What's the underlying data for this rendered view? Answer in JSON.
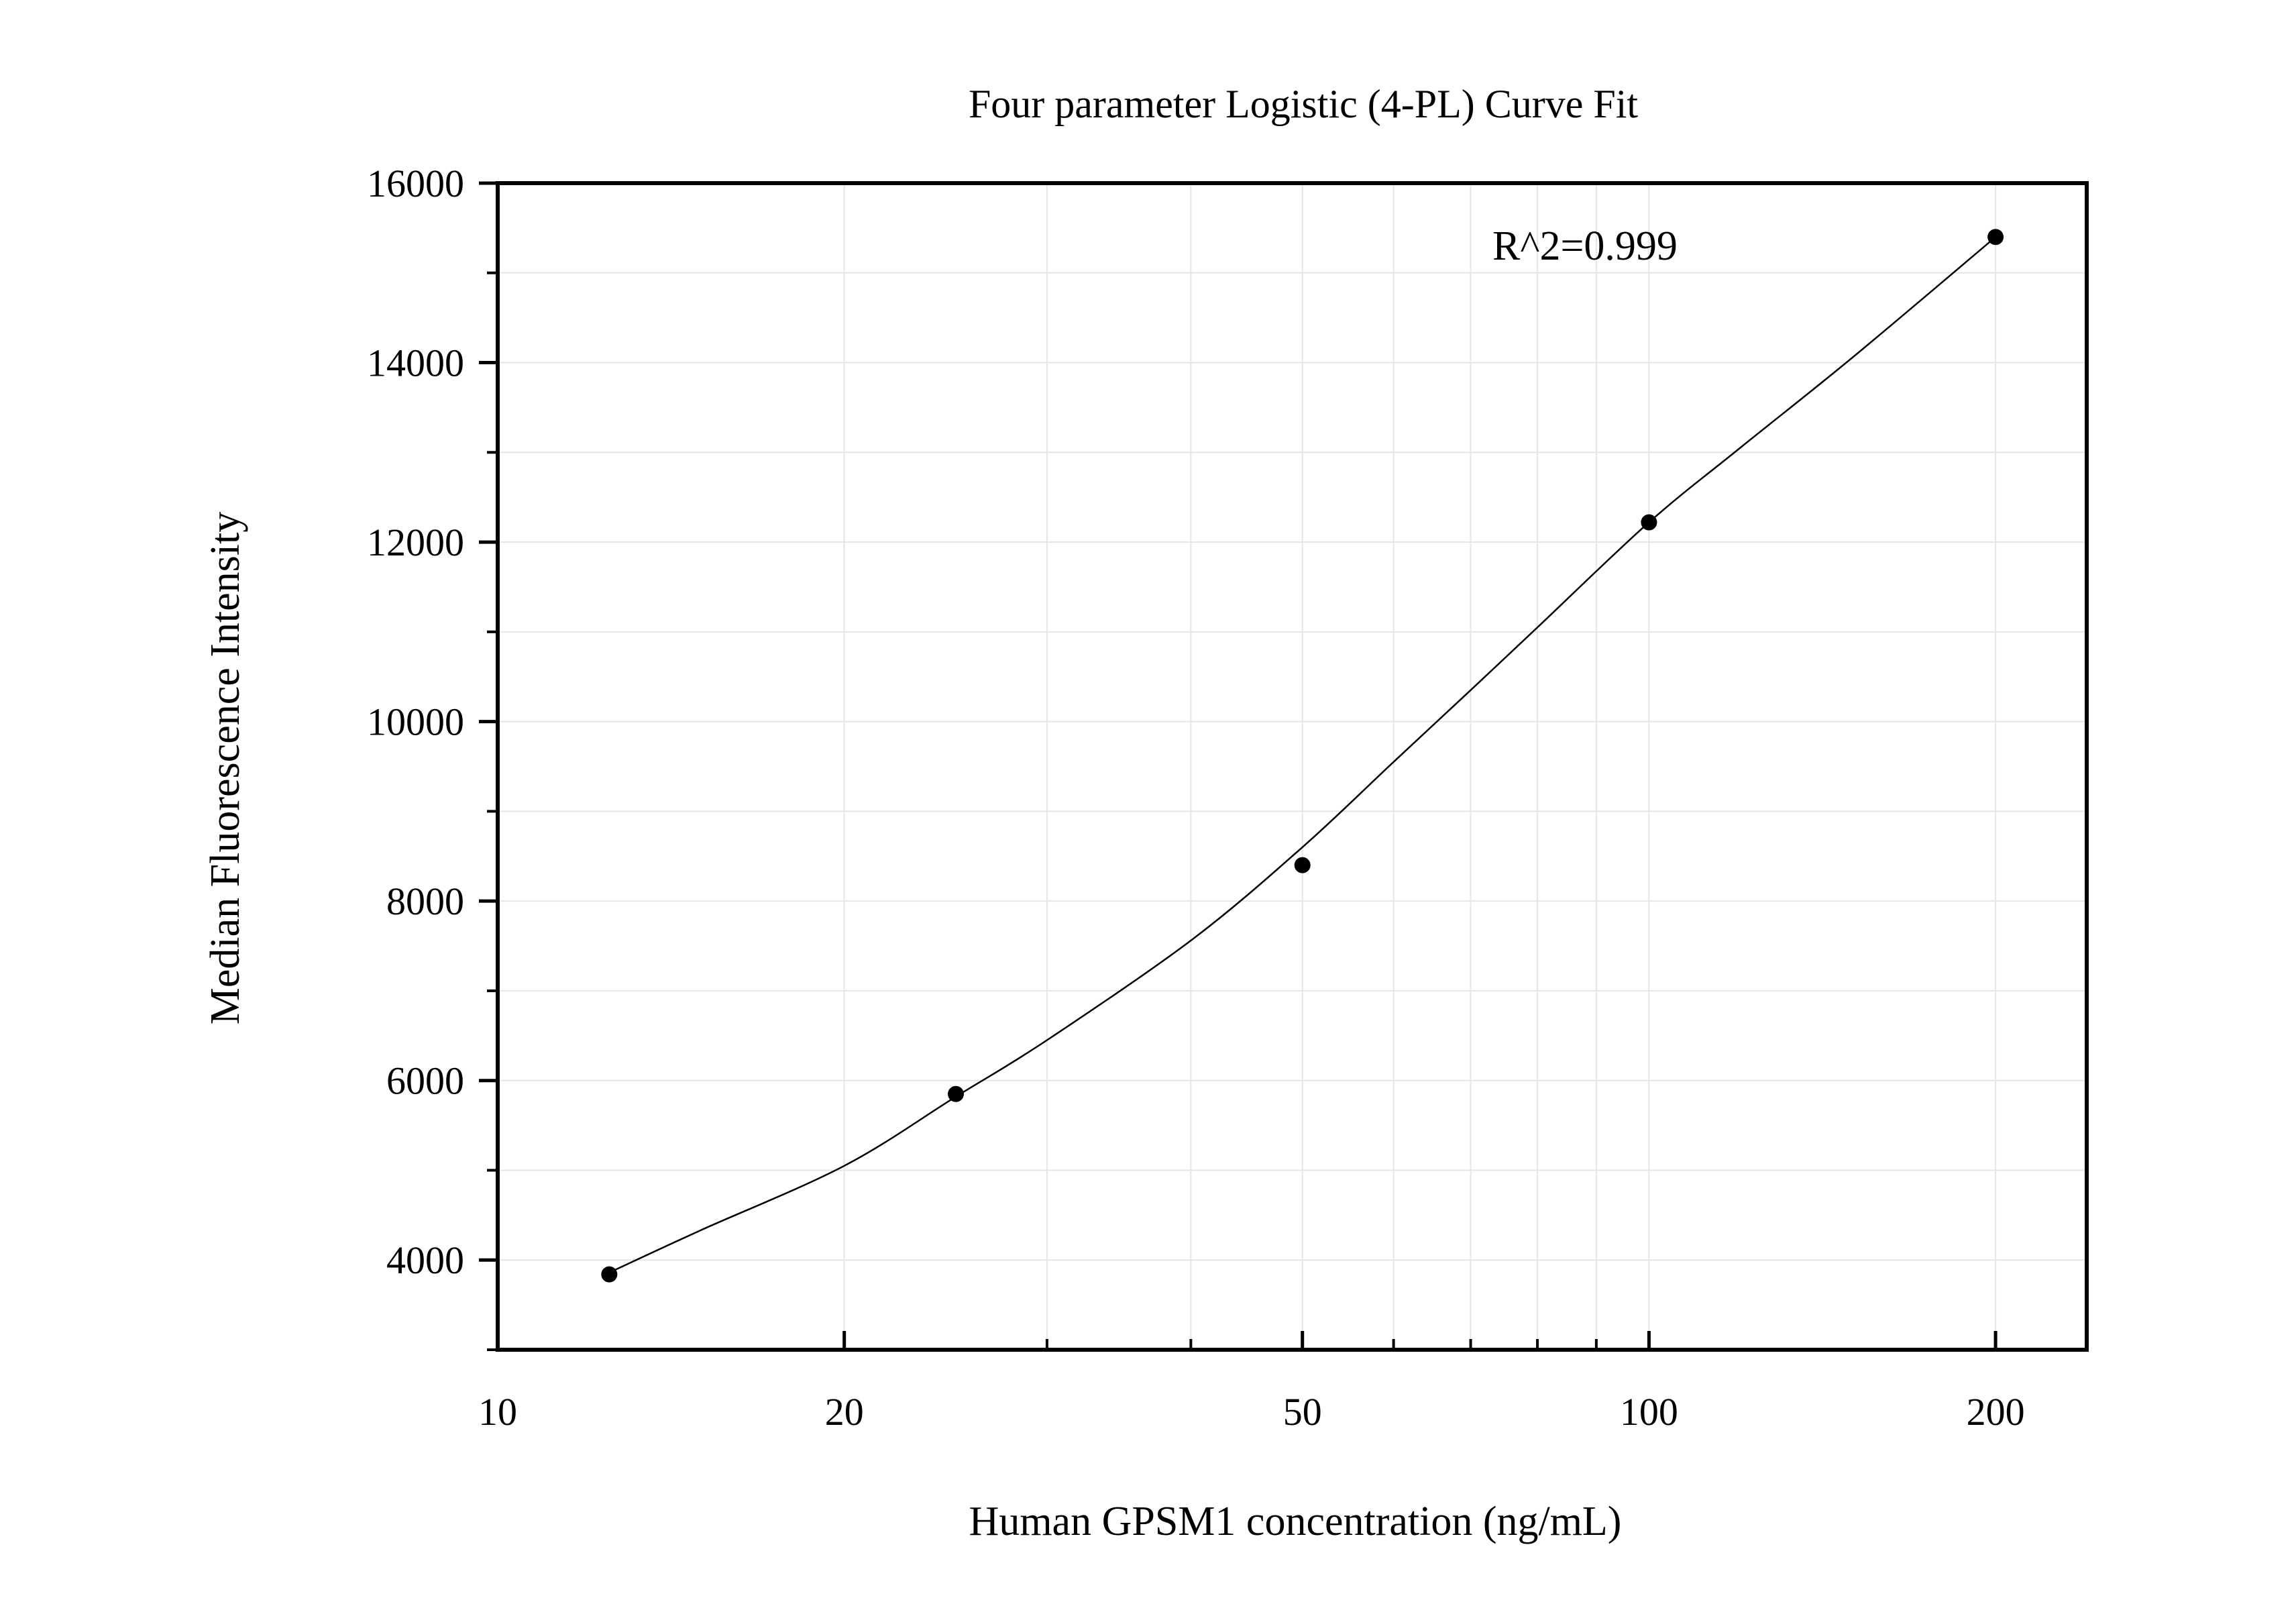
{
  "chart_data": {
    "type": "scatter",
    "title": "Four parameter Logistic (4-PL) Curve Fit",
    "xlabel": "Human GPSM1 concentration (ng/mL)",
    "ylabel": "Median Fluorescence Intensity",
    "x_scale": "log",
    "xlim": [
      10,
      240
    ],
    "ylim": [
      3000,
      16000
    ],
    "x_ticks": [
      10,
      20,
      50,
      100,
      200
    ],
    "x_tick_labels": [
      "10",
      "20",
      "50",
      "100",
      "200"
    ],
    "y_ticks": [
      4000,
      6000,
      8000,
      10000,
      12000,
      14000,
      16000
    ],
    "y_tick_labels": [
      "4000",
      "6000",
      "8000",
      "10000",
      "12000",
      "14000",
      "16000"
    ],
    "grid": true,
    "annotation": "R^2=0.999",
    "series": [
      {
        "type": "scatter",
        "x": [
          12.5,
          25,
          50,
          100,
          200
        ],
        "y": [
          3840,
          5850,
          8400,
          12220,
          15400
        ]
      }
    ],
    "fit_curve": {
      "type": "4-PL",
      "x": [
        12.5,
        15,
        20,
        25,
        30,
        40,
        50,
        60,
        70,
        80,
        100,
        120,
        150,
        200
      ],
      "y": [
        3860,
        4330,
        5050,
        5820,
        6450,
        7560,
        8600,
        9550,
        10350,
        11050,
        12220,
        13050,
        14050,
        15400
      ]
    },
    "colors": {
      "points": "#000000",
      "curve": "#000000",
      "grid": "#e6e6e6",
      "axes": "#000000"
    }
  }
}
